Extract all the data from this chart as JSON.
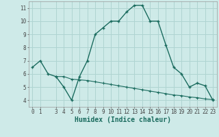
{
  "line1_x": [
    0,
    1,
    2,
    3,
    4,
    5,
    6,
    7,
    8,
    9,
    10,
    11,
    12,
    13,
    14,
    15,
    16,
    17,
    18,
    19,
    20,
    21,
    22,
    23
  ],
  "line1_y": [
    6.5,
    7.0,
    6.0,
    5.8,
    5.0,
    4.0,
    5.8,
    7.0,
    9.0,
    9.5,
    10.0,
    10.0,
    10.7,
    11.2,
    11.2,
    10.0,
    10.0,
    8.2,
    6.5,
    6.0,
    5.0,
    5.3,
    5.1,
    4.0
  ],
  "line2_x": [
    3,
    4,
    5,
    6,
    7,
    8,
    9,
    10,
    11,
    12,
    13,
    14,
    15,
    16,
    17,
    18,
    19,
    20,
    21,
    22,
    23
  ],
  "line2_y": [
    5.8,
    5.8,
    5.6,
    5.55,
    5.5,
    5.4,
    5.3,
    5.2,
    5.1,
    5.0,
    4.9,
    4.8,
    4.7,
    4.6,
    4.5,
    4.4,
    4.35,
    4.25,
    4.2,
    4.1,
    4.05
  ],
  "line_color": "#1a6b5e",
  "bg_color": "#ceeae8",
  "grid_color": "#afd4d1",
  "xlabel": "Humidex (Indice chaleur)",
  "xlim": [
    -0.5,
    23.5
  ],
  "ylim": [
    3.5,
    11.5
  ],
  "yticks": [
    4,
    5,
    6,
    7,
    8,
    9,
    10,
    11
  ],
  "xticks": [
    0,
    1,
    3,
    4,
    5,
    6,
    7,
    8,
    9,
    10,
    11,
    12,
    13,
    14,
    15,
    16,
    17,
    18,
    19,
    20,
    21,
    22,
    23
  ],
  "tick_fontsize": 5.5,
  "xlabel_fontsize": 7,
  "xlabel_color": "#1a6b5e"
}
